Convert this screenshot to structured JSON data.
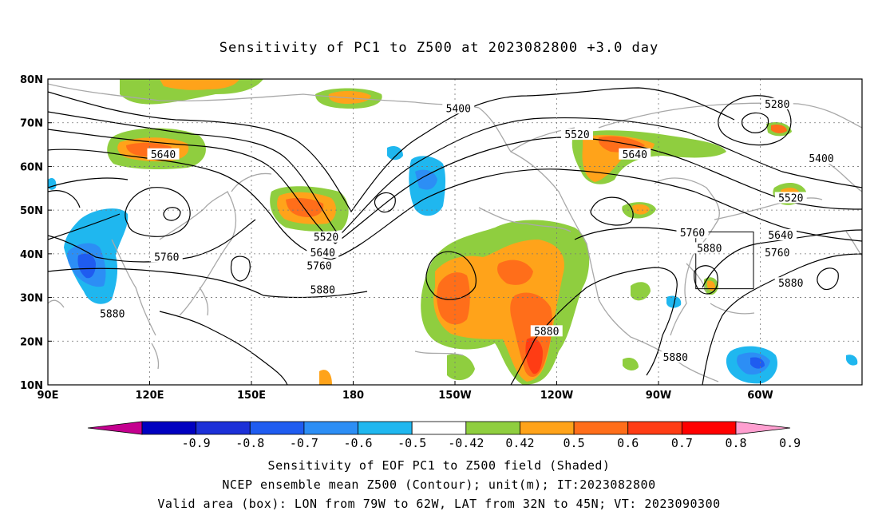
{
  "title": "Sensitivity of PC1 to Z500 at 2023082800 +3.0 day",
  "map": {
    "lat_labels": [
      "80N",
      "70N",
      "60N",
      "50N",
      "40N",
      "30N",
      "20N",
      "10N"
    ],
    "lon_labels": [
      "90E",
      "120E",
      "150E",
      "180",
      "150W",
      "120W",
      "90W",
      "60W"
    ],
    "lon_range": [
      90,
      330
    ],
    "lat_range": [
      10,
      80
    ],
    "contour_labels": [
      {
        "text": "5400",
        "lon": 211,
        "lat": 73.0
      },
      {
        "text": "5520",
        "lon": 246,
        "lat": 67.0
      },
      {
        "text": "5640",
        "lon": 124,
        "lat": 62.5
      },
      {
        "text": "5640",
        "lon": 263,
        "lat": 62.5
      },
      {
        "text": "5280",
        "lon": 305,
        "lat": 74.0
      },
      {
        "text": "5400",
        "lon": 318,
        "lat": 61.5
      },
      {
        "text": "5520",
        "lon": 309,
        "lat": 52.5
      },
      {
        "text": "5760",
        "lon": 125,
        "lat": 39.0
      },
      {
        "text": "5520",
        "lon": 172,
        "lat": 43.5
      },
      {
        "text": "5640",
        "lon": 171,
        "lat": 40.0
      },
      {
        "text": "5760",
        "lon": 170,
        "lat": 37.0
      },
      {
        "text": "5880",
        "lon": 171,
        "lat": 31.5
      },
      {
        "text": "5760",
        "lon": 280,
        "lat": 44.5
      },
      {
        "text": "5880",
        "lon": 285,
        "lat": 41.0
      },
      {
        "text": "5640",
        "lon": 306,
        "lat": 44.0
      },
      {
        "text": "5760",
        "lon": 305,
        "lat": 40.0
      },
      {
        "text": "5880",
        "lon": 309,
        "lat": 33.0
      },
      {
        "text": "5880",
        "lon": 109,
        "lat": 26.0
      },
      {
        "text": "5880",
        "lon": 237,
        "lat": 22.0
      },
      {
        "text": "5880",
        "lon": 275,
        "lat": 16.0
      }
    ],
    "valid_box": {
      "lon": [
        281,
        298
      ],
      "lat": [
        32,
        45
      ]
    }
  },
  "colorbar": {
    "labels": [
      "-0.9",
      "-0.8",
      "-0.7",
      "-0.6",
      "-0.5",
      "-0.42",
      "0.42",
      "0.5",
      "0.6",
      "0.7",
      "0.8",
      "0.9"
    ],
    "colors": [
      "#c4008f",
      "#0000c0",
      "#1c30d8",
      "#1f5cf0",
      "#2c8ef5",
      "#1fb7ef",
      "#ffffff",
      "#8fce3f",
      "#ffa31a",
      "#ff6e1a",
      "#ff3c14",
      "#ff0000",
      "#ff9fd0"
    ]
  },
  "footer": {
    "line1": "Sensitivity of EOF PC1 to Z500 field (Shaded)",
    "line2": "NCEP ensemble mean Z500 (Contour); unit(m); IT:2023082800",
    "line3": "Valid area (box): LON from 79W to 62W, LAT from 32N to 45N; VT: 2023090300"
  }
}
